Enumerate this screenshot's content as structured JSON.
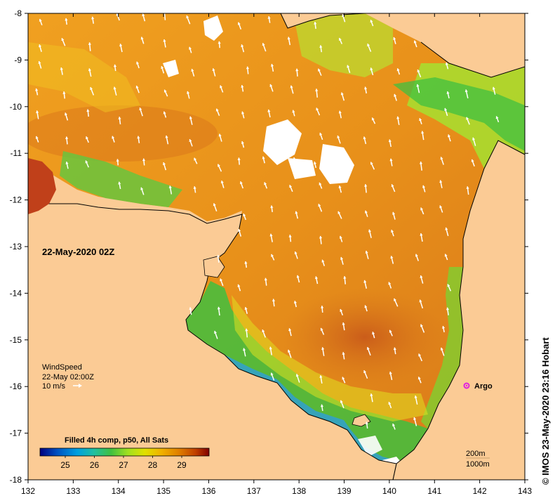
{
  "map": {
    "date_label": "22-May-2020 02Z",
    "wind": {
      "title": "WindSpeed",
      "time": "22-May 02:00Z",
      "scale": "10 m/s"
    },
    "argo": {
      "label": "Argo",
      "color": "#e020e0"
    },
    "depth_labels": [
      "200m",
      "1000m"
    ],
    "legend": {
      "title": "Filled 4h comp, p50, All Sats",
      "ticks": [
        "25",
        "26",
        "27",
        "28",
        "29"
      ],
      "colors": [
        "#00007f",
        "#0050c0",
        "#00a0e0",
        "#20c0a0",
        "#40c040",
        "#a0e020",
        "#e0e000",
        "#f0b000",
        "#e08000",
        "#c04000",
        "#800000"
      ]
    },
    "x_axis": {
      "ticks": [
        "132",
        "133",
        "134",
        "135",
        "136",
        "137",
        "138",
        "139",
        "140",
        "141",
        "142",
        "143"
      ]
    },
    "y_axis": {
      "ticks": [
        "-8",
        "-9",
        "-10",
        "-11",
        "-12",
        "-13",
        "-14",
        "-15",
        "-16",
        "-17",
        "-18"
      ]
    },
    "credit": "© IMOS 23-May-2020 23:16 Hobart",
    "colors": {
      "land": "#fbcb95",
      "sst_warm": "#e89a1a",
      "sst_hot": "#d0601a",
      "sst_mid": "#f0c020",
      "sst_cool": "#a6e030",
      "sst_green": "#40c040",
      "sst_blue": "#30a0d0"
    }
  }
}
